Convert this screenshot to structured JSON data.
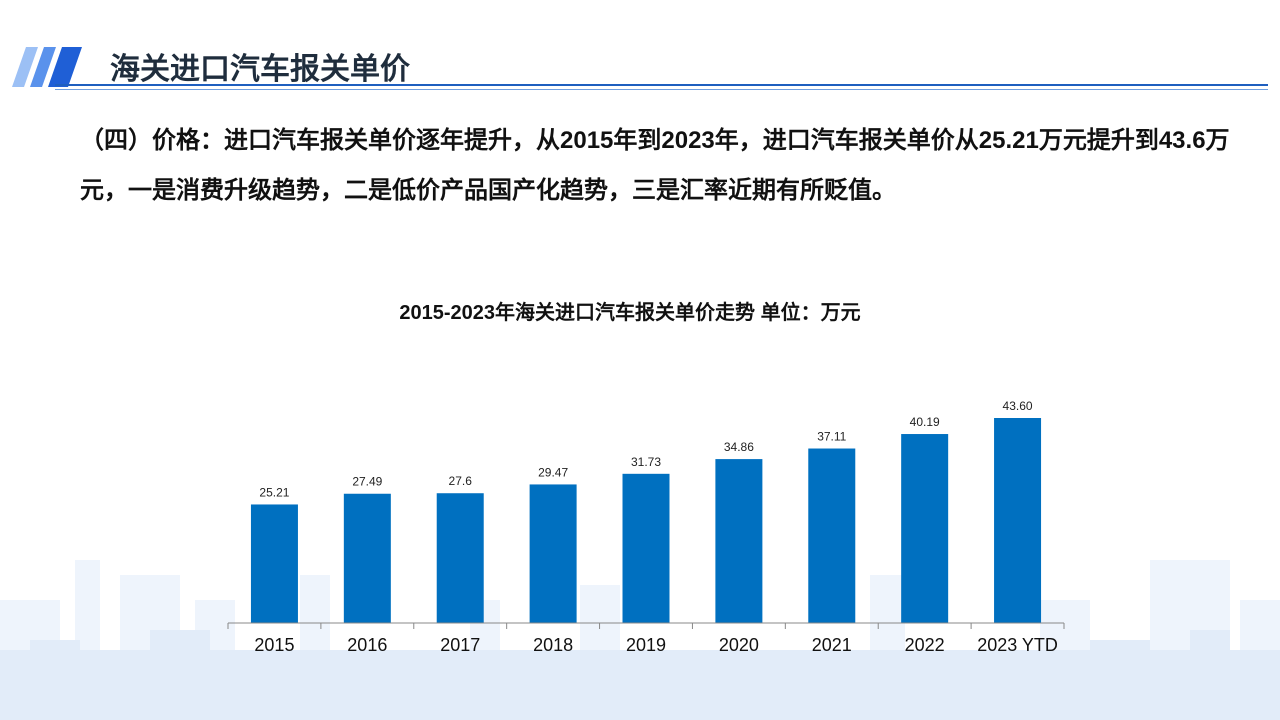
{
  "header": {
    "title": "海关进口汽车报关单价"
  },
  "body": {
    "text": "（四）价格：进口汽车报关单价逐年提升，从2015年到2023年，进口汽车报关单价从25.21万元提升到43.6万元，一是消费升级趋势，二是低价产品国产化趋势，三是汇率近期有所贬值。"
  },
  "colors": {
    "bar": "#0070C0",
    "header_line": "#1f5fbf",
    "deco": "#2e6de0"
  },
  "chart_data": {
    "type": "bar",
    "title": "2015-2023年海关进口汽车报关单价走势 单位：万元",
    "categories": [
      "2015",
      "2016",
      "2017",
      "2018",
      "2019",
      "2020",
      "2021",
      "2022",
      "2023 YTD"
    ],
    "values": [
      25.21,
      27.49,
      27.6,
      29.47,
      31.73,
      34.86,
      37.11,
      40.19,
      43.6
    ],
    "data_labels": [
      "25.21",
      "27.49",
      "27.6",
      "29.47",
      "31.73",
      "34.86",
      "37.11",
      "40.19",
      "43.60"
    ],
    "xlabel": "",
    "ylabel": "",
    "ylim": [
      0,
      43.6
    ],
    "grid": false,
    "legend": "none"
  }
}
